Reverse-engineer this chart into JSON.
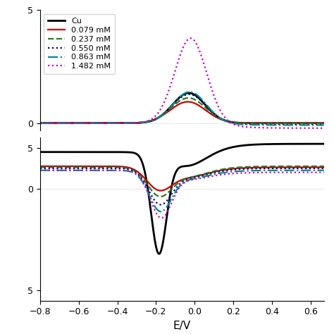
{
  "legend_labels": [
    "Cu",
    "0.079 mM",
    "0.237 mM",
    "0.550 mM",
    "0.863 mM",
    "1.482 mM"
  ],
  "colors": [
    "#000000",
    "#cc0000",
    "#2d7a1f",
    "#00008b",
    "#008b8b",
    "#cc00cc"
  ],
  "linestyles": [
    "-",
    "-",
    "--",
    ":",
    "-.",
    ":"
  ],
  "linewidths": [
    2.0,
    1.6,
    1.6,
    1.6,
    1.6,
    1.6
  ],
  "xlabel": "E/V",
  "xlim": [
    -0.8,
    0.67
  ],
  "xticks": [
    -0.8,
    -0.6,
    -0.4,
    -0.2,
    0.0,
    0.2,
    0.4,
    0.6
  ],
  "upper_ylim": [
    -0.3,
    4.5
  ],
  "upper_yticks": [
    0,
    5
  ],
  "upper_ytick_labels": [
    "0",
    "5"
  ],
  "lower_ylim": [
    -5.5,
    2.5
  ],
  "lower_yticks": [
    -5,
    0,
    5
  ],
  "lower_ytick_labels": [
    "5",
    "0",
    "5"
  ],
  "figsize": [
    4.74,
    4.74
  ],
  "dpi": 100,
  "background_color": "#ffffff",
  "legend_fontsize": 8.0,
  "axis_fontsize": 11
}
